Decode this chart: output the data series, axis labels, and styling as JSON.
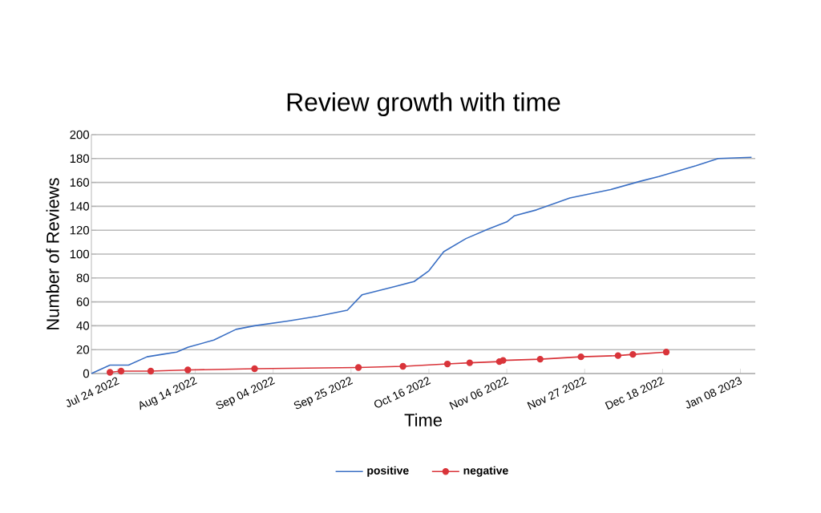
{
  "chart_data": {
    "type": "line",
    "title": "Review growth with time",
    "xlabel": "Time",
    "ylabel": "Number of Reviews",
    "xlim": [
      "2022-07-17",
      "2023-01-12"
    ],
    "ylim": [
      0,
      200
    ],
    "yticks": [
      0,
      20,
      40,
      60,
      80,
      100,
      120,
      140,
      160,
      180,
      200
    ],
    "xticks": [
      {
        "value": "2022-07-24",
        "label": "Jul 24 2022"
      },
      {
        "value": "2022-08-14",
        "label": "Aug 14 2022"
      },
      {
        "value": "2022-09-04",
        "label": "Sep 04 2022"
      },
      {
        "value": "2022-09-25",
        "label": "Sep 25 2022"
      },
      {
        "value": "2022-10-16",
        "label": "Oct 16 2022"
      },
      {
        "value": "2022-11-06",
        "label": "Nov 06 2022"
      },
      {
        "value": "2022-11-27",
        "label": "Nov 27 2022"
      },
      {
        "value": "2022-12-18",
        "label": "Dec 18 2022"
      },
      {
        "value": "2023-01-08",
        "label": "Jan 08 2023"
      }
    ],
    "grid": "y",
    "legend": "bottom",
    "series": [
      {
        "name": "positive",
        "color": "#3a6fc4",
        "marker": "none",
        "x": [
          "2022-07-17",
          "2022-07-22",
          "2022-07-27",
          "2022-08-01",
          "2022-08-05",
          "2022-08-09",
          "2022-08-12",
          "2022-08-19",
          "2022-08-25",
          "2022-08-30",
          "2022-09-08",
          "2022-09-16",
          "2022-09-24",
          "2022-09-28",
          "2022-10-07",
          "2022-10-12",
          "2022-10-16",
          "2022-10-20",
          "2022-10-26",
          "2022-11-01",
          "2022-11-06",
          "2022-11-08",
          "2022-11-14",
          "2022-11-23",
          "2022-12-04",
          "2022-12-12",
          "2022-12-17",
          "2022-12-27",
          "2023-01-02",
          "2023-01-11"
        ],
        "values": [
          0,
          7,
          7,
          14,
          16,
          18,
          22,
          28,
          37,
          40,
          44,
          48,
          53,
          66,
          73,
          77,
          86,
          102,
          113,
          121,
          127,
          132,
          137,
          147,
          154,
          161,
          165,
          174,
          180,
          181
        ]
      },
      {
        "name": "negative",
        "color": "#d9343a",
        "marker": "circle",
        "x": [
          "2022-07-22",
          "2022-07-25",
          "2022-08-02",
          "2022-08-12",
          "2022-08-30",
          "2022-09-27",
          "2022-10-09",
          "2022-10-21",
          "2022-10-27",
          "2022-11-04",
          "2022-11-05",
          "2022-11-15",
          "2022-11-26",
          "2022-12-06",
          "2022-12-10",
          "2022-12-19"
        ],
        "values": [
          1,
          2,
          2,
          3,
          4,
          5,
          6,
          8,
          9,
          10,
          11,
          12,
          14,
          15,
          16,
          18
        ]
      }
    ]
  }
}
